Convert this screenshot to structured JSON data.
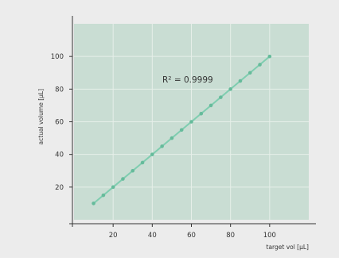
{
  "chart_data": {
    "type": "scatter",
    "title": "",
    "xlabel": "target vol [µL]",
    "ylabel": "actual volume [µL]",
    "annotation": "R² = 0.9999",
    "xlim": [
      0,
      120
    ],
    "ylim": [
      0,
      120
    ],
    "x_ticks": [
      20,
      40,
      60,
      80,
      100
    ],
    "y_ticks": [
      20,
      40,
      60,
      80,
      100
    ],
    "grid": true,
    "legend": "none",
    "series": [
      {
        "x": [
          10,
          15,
          20,
          25,
          30,
          35,
          40,
          45,
          50,
          55,
          60,
          65,
          70,
          75,
          80,
          85,
          90,
          95,
          100
        ],
        "y": [
          10,
          15,
          20,
          25,
          30,
          35,
          40,
          45,
          50,
          55,
          60,
          65,
          70,
          75,
          80,
          85,
          90,
          95,
          100
        ]
      }
    ],
    "colors": {
      "plot_background": "#c9ddd3",
      "grid": "#e6efe9",
      "line": "#7fcdb0",
      "marker": "#66bb9b",
      "axis": "#333333",
      "text": "#333333",
      "figure_background": "#ececec"
    }
  }
}
